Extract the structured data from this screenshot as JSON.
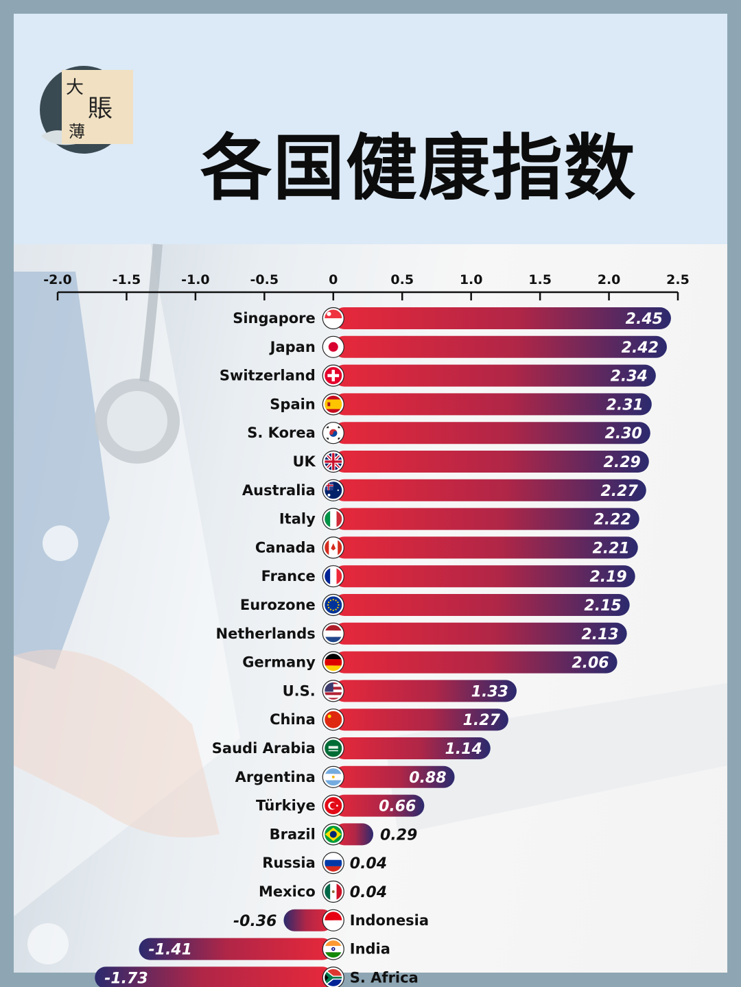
{
  "header": {
    "title": "各国健康指数",
    "logo": {
      "text_1": "大",
      "text_2": "賬",
      "text_3": "薄"
    }
  },
  "colors": {
    "bar_start": "#e8283a",
    "bar_end": "#2b2a6e",
    "background": "#dce9f6"
  },
  "chart_data": {
    "type": "bar",
    "orientation": "horizontal",
    "title": "",
    "xlabel": "",
    "ylabel": "",
    "xlim": [
      -2.0,
      2.5
    ],
    "x_ticks": [
      -2.0,
      -1.5,
      -1.0,
      -0.5,
      0,
      0.5,
      1.0,
      1.5,
      2.0,
      2.5
    ],
    "x_tick_labels": [
      "-2.0",
      "-1.5",
      "-1.0",
      "-0.5",
      "0",
      "0.5",
      "1.0",
      "1.5",
      "2.0",
      "2.5"
    ],
    "categories": [
      "Singapore",
      "Japan",
      "Switzerland",
      "Spain",
      "S. Korea",
      "UK",
      "Australia",
      "Italy",
      "Canada",
      "France",
      "Eurozone",
      "Netherlands",
      "Germany",
      "U.S.",
      "China",
      "Saudi Arabia",
      "Argentina",
      "Türkiye",
      "Brazil",
      "Russia",
      "Mexico",
      "Indonesia",
      "India",
      "S. Africa"
    ],
    "values": [
      2.45,
      2.42,
      2.34,
      2.31,
      2.3,
      2.29,
      2.27,
      2.22,
      2.21,
      2.19,
      2.15,
      2.13,
      2.06,
      1.33,
      1.27,
      1.14,
      0.88,
      0.66,
      0.29,
      0.04,
      0.04,
      -0.36,
      -1.41,
      -1.73
    ],
    "value_labels": [
      "2.45",
      "2.42",
      "2.34",
      "2.31",
      "2.30",
      "2.29",
      "2.27",
      "2.22",
      "2.21",
      "2.19",
      "2.15",
      "2.13",
      "2.06",
      "1.33",
      "1.27",
      "1.14",
      "0.88",
      "0.66",
      "0.29",
      "0.04",
      "0.04",
      "-0.36",
      "-1.41",
      "-1.73"
    ],
    "flag_icons": [
      "singapore-flag-icon",
      "japan-flag-icon",
      "switzerland-flag-icon",
      "spain-flag-icon",
      "south-korea-flag-icon",
      "uk-flag-icon",
      "australia-flag-icon",
      "italy-flag-icon",
      "canada-flag-icon",
      "france-flag-icon",
      "eurozone-flag-icon",
      "netherlands-flag-icon",
      "germany-flag-icon",
      "us-flag-icon",
      "china-flag-icon",
      "saudi-arabia-flag-icon",
      "argentina-flag-icon",
      "turkiye-flag-icon",
      "brazil-flag-icon",
      "russia-flag-icon",
      "mexico-flag-icon",
      "indonesia-flag-icon",
      "india-flag-icon",
      "south-africa-flag-icon"
    ],
    "grid": false,
    "legend": "none"
  }
}
